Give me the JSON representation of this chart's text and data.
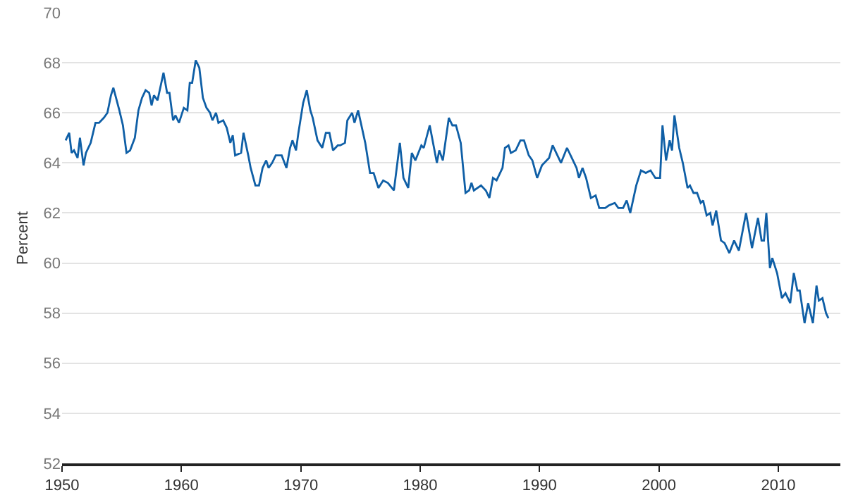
{
  "chart_data": {
    "type": "line",
    "ylabel": "Percent",
    "x": [
      1950.3,
      1950.6,
      1950.8,
      1951.0,
      1951.3,
      1951.5,
      1951.8,
      1952.0,
      1952.4,
      1952.8,
      1953.1,
      1953.5,
      1953.8,
      1954.1,
      1954.3,
      1954.8,
      1955.1,
      1955.4,
      1955.7,
      1956.1,
      1956.4,
      1956.7,
      1957.0,
      1957.3,
      1957.5,
      1957.7,
      1958.0,
      1958.5,
      1958.8,
      1959.0,
      1959.3,
      1959.5,
      1959.8,
      1960.2,
      1960.5,
      1960.7,
      1960.9,
      1961.2,
      1961.5,
      1961.8,
      1962.1,
      1962.4,
      1962.6,
      1962.9,
      1963.1,
      1963.5,
      1963.8,
      1964.1,
      1964.3,
      1964.5,
      1965.0,
      1965.2,
      1965.6,
      1965.8,
      1966.2,
      1966.5,
      1966.8,
      1967.1,
      1967.3,
      1967.6,
      1967.9,
      1968.4,
      1968.8,
      1969.1,
      1969.3,
      1969.6,
      1969.8,
      1970.2,
      1970.5,
      1970.8,
      1971.0,
      1971.4,
      1971.8,
      1972.1,
      1972.4,
      1972.7,
      1973.1,
      1973.3,
      1973.7,
      1973.9,
      1974.3,
      1974.5,
      1974.8,
      1975.4,
      1975.8,
      1976.1,
      1976.5,
      1976.9,
      1977.3,
      1977.8,
      1978.3,
      1978.6,
      1979.0,
      1979.3,
      1979.6,
      1980.1,
      1980.3,
      1980.8,
      1981.4,
      1981.6,
      1981.9,
      1982.4,
      1982.7,
      1983.0,
      1983.4,
      1983.8,
      1984.1,
      1984.3,
      1984.5,
      1985.1,
      1985.5,
      1985.8,
      1986.1,
      1986.4,
      1986.9,
      1987.1,
      1987.4,
      1987.6,
      1988.0,
      1988.4,
      1988.7,
      1989.1,
      1989.4,
      1989.8,
      1990.2,
      1990.8,
      1991.1,
      1991.4,
      1991.8,
      1992.3,
      1992.7,
      1993.1,
      1993.3,
      1993.6,
      1993.9,
      1994.3,
      1994.7,
      1995.0,
      1995.5,
      1995.8,
      1996.3,
      1996.6,
      1997.0,
      1997.3,
      1997.6,
      1998.1,
      1998.5,
      1998.9,
      1999.3,
      1999.7,
      2000.1,
      2000.3,
      2000.6,
      2000.9,
      2001.1,
      2001.3,
      2001.7,
      2002.0,
      2002.4,
      2002.6,
      2002.9,
      2003.2,
      2003.5,
      2003.7,
      2004.0,
      2004.3,
      2004.5,
      2004.8,
      2005.2,
      2005.5,
      2005.9,
      2006.3,
      2006.7,
      2007.3,
      2007.8,
      2008.3,
      2008.6,
      2008.8,
      2009.0,
      2009.3,
      2009.5,
      2009.9,
      2010.3,
      2010.6,
      2011.0,
      2011.3,
      2011.6,
      2011.8,
      2012.2,
      2012.5,
      2012.9,
      2013.2,
      2013.4,
      2013.7,
      2014.0,
      2014.2
    ],
    "series": [
      {
        "color": "#0f5fa6",
        "values": [
          64.9,
          65.2,
          64.4,
          64.5,
          64.2,
          65.0,
          63.9,
          64.4,
          64.8,
          65.6,
          65.6,
          65.8,
          66.0,
          66.7,
          67.0,
          66.1,
          65.5,
          64.4,
          64.5,
          65.0,
          66.1,
          66.6,
          66.9,
          66.8,
          66.3,
          66.7,
          66.5,
          67.6,
          66.8,
          66.8,
          65.7,
          65.9,
          65.6,
          66.2,
          66.1,
          67.2,
          67.2,
          68.1,
          67.8,
          66.6,
          66.2,
          66.0,
          65.7,
          66.0,
          65.6,
          65.7,
          65.4,
          64.8,
          65.1,
          64.3,
          64.4,
          65.2,
          64.3,
          63.8,
          63.1,
          63.1,
          63.8,
          64.1,
          63.8,
          64.0,
          64.3,
          64.3,
          63.8,
          64.6,
          64.9,
          64.5,
          65.2,
          66.4,
          66.9,
          66.1,
          65.8,
          64.9,
          64.6,
          65.2,
          65.2,
          64.5,
          64.7,
          64.7,
          64.8,
          65.7,
          66.0,
          65.6,
          66.1,
          64.8,
          63.6,
          63.6,
          63.0,
          63.3,
          63.2,
          62.9,
          64.8,
          63.4,
          63.0,
          64.4,
          64.1,
          64.7,
          64.6,
          65.5,
          64.0,
          64.5,
          64.1,
          65.8,
          65.5,
          65.5,
          64.8,
          62.8,
          62.9,
          63.2,
          62.9,
          63.1,
          62.9,
          62.6,
          63.4,
          63.3,
          63.8,
          64.6,
          64.7,
          64.4,
          64.5,
          64.9,
          64.9,
          64.3,
          64.1,
          63.4,
          63.9,
          64.2,
          64.7,
          64.4,
          64.0,
          64.6,
          64.2,
          63.8,
          63.4,
          63.8,
          63.4,
          62.6,
          62.7,
          62.2,
          62.2,
          62.3,
          62.4,
          62.2,
          62.2,
          62.5,
          62.0,
          63.1,
          63.7,
          63.6,
          63.7,
          63.4,
          63.4,
          65.5,
          64.1,
          64.9,
          64.5,
          65.9,
          64.6,
          64.0,
          63.0,
          63.1,
          62.8,
          62.8,
          62.4,
          62.5,
          61.9,
          62.0,
          61.5,
          62.1,
          60.9,
          60.8,
          60.4,
          60.9,
          60.5,
          62.0,
          60.6,
          61.8,
          60.9,
          60.9,
          62.0,
          59.8,
          60.2,
          59.6,
          58.6,
          58.8,
          58.4,
          59.6,
          58.9,
          58.9,
          57.6,
          58.4,
          57.6,
          59.1,
          58.5,
          58.6,
          58.0,
          57.8
        ]
      }
    ],
    "xlim": [
      1950,
      2015.2
    ],
    "xticks": [
      1950,
      1960,
      1970,
      1980,
      1990,
      2000,
      2010
    ],
    "ylim": [
      52,
      70
    ],
    "yticks": [
      52,
      54,
      56,
      58,
      60,
      62,
      64,
      66,
      68,
      70
    ],
    "grid": "y",
    "legend": false,
    "marker": "none",
    "line_style": "solid"
  }
}
